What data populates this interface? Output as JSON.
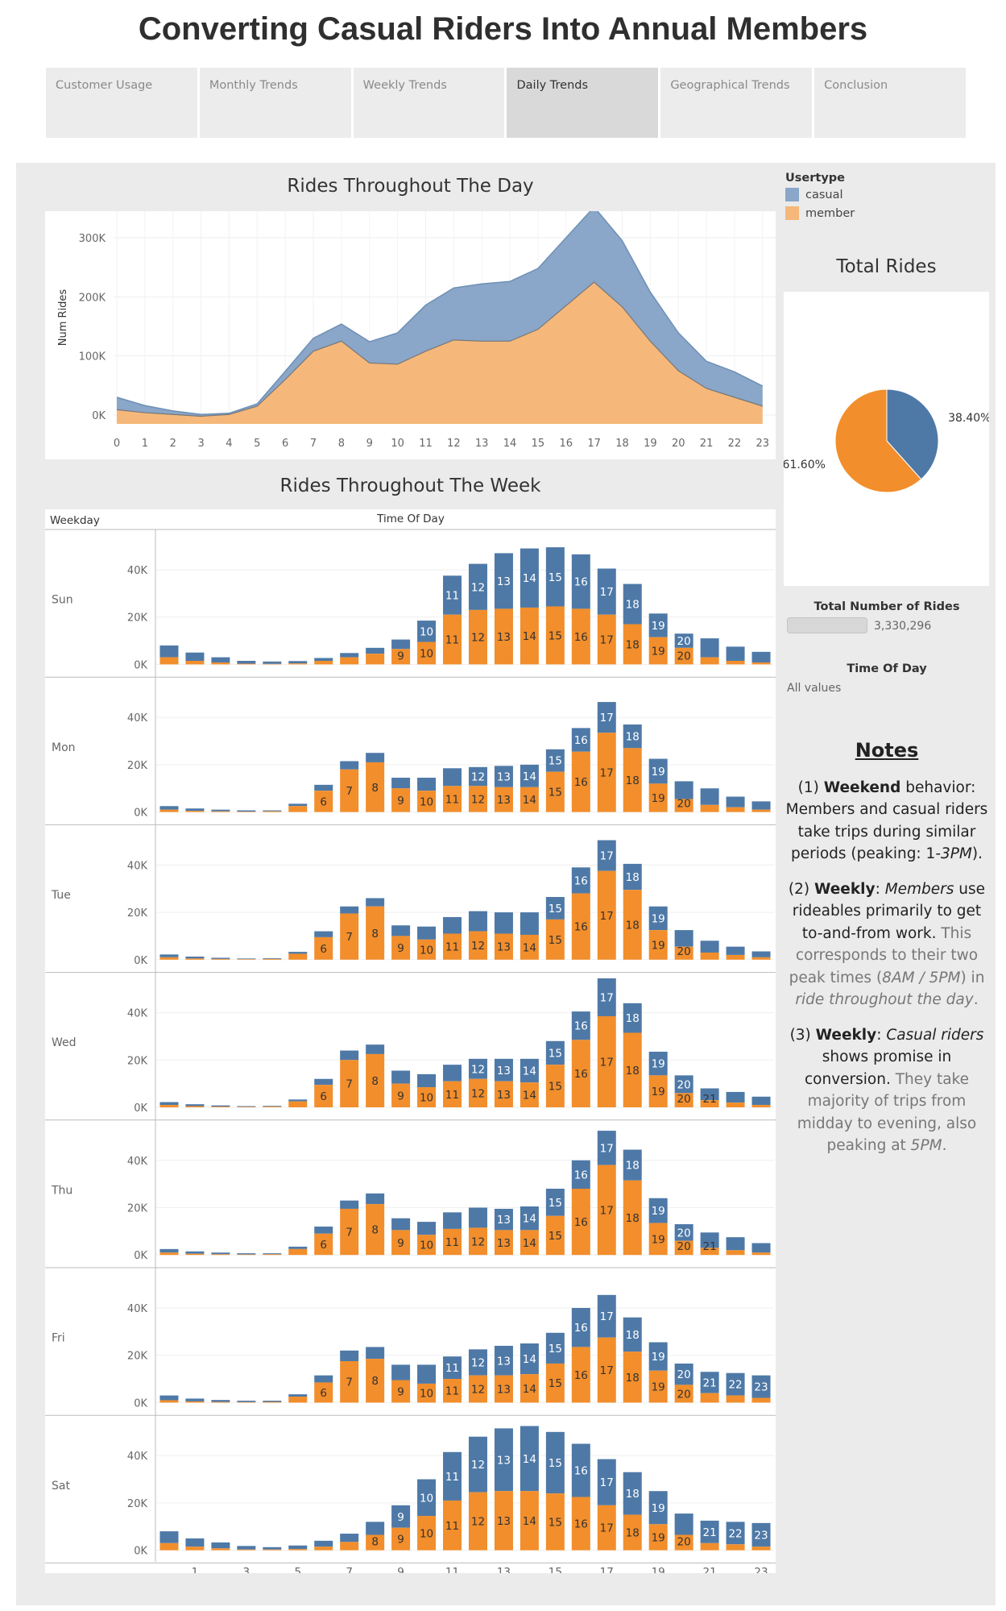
{
  "title": "Converting Casual Riders Into Annual Members",
  "tabs": [
    {
      "label": "Customer Usage",
      "active": false
    },
    {
      "label": "Monthly Trends",
      "active": false
    },
    {
      "label": "Weekly Trends",
      "active": false
    },
    {
      "label": "Daily Trends",
      "active": true
    },
    {
      "label": "Geographical Trends",
      "active": false
    },
    {
      "label": "Conclusion",
      "active": false
    }
  ],
  "colors": {
    "casual": "#4e79a7",
    "member": "#f28e2b",
    "casual_area": "#8aa6c8",
    "member_area": "#f5b87a"
  },
  "legend": {
    "title": "Usertype",
    "items": [
      "casual",
      "member"
    ]
  },
  "filters": {
    "total_label": "Total Number of Rides",
    "total_value": "3,330,296",
    "tod_label": "Time Of Day",
    "tod_value": "All values"
  },
  "notes": {
    "title": "Notes",
    "n1_a": "(1) ",
    "n1_b": "Weekend",
    "n1_c": " behavior: Members and casual riders take trips during similar periods (peaking: 1-",
    "n1_d": "3PM",
    "n1_e": ").",
    "n2_a": "(2) ",
    "n2_b": "Weekly",
    "n2_c": ": ",
    "n2_d": "Members",
    "n2_e": " use rideables primarily to get to-and-from work.",
    "n2_f": " This corresponds to their two peak times (",
    "n2_g": "8AM / 5PM",
    "n2_h": ") in ",
    "n2_i": "ride throughout the day",
    "n2_j": ".",
    "n3_a": "(3) ",
    "n3_b": "Weekly",
    "n3_c": ": ",
    "n3_d": "Casual riders",
    "n3_e": " shows promise in conversion.",
    "n3_f": " They take majority of trips from midday to evening, also peaking at ",
    "n3_g": "5PM",
    "n3_h": "."
  },
  "chart_data": [
    {
      "type": "area",
      "title": "Rides Throughout The Day",
      "xlabel": "",
      "ylabel": "Num Rides",
      "x": [
        0,
        1,
        2,
        3,
        4,
        5,
        6,
        7,
        8,
        9,
        10,
        11,
        12,
        13,
        14,
        15,
        16,
        17,
        18,
        19,
        20,
        21,
        22,
        23
      ],
      "x_tick_labels": [
        "0",
        "1",
        "2",
        "3",
        "4",
        "5",
        "6",
        "7",
        "8",
        "9",
        "10",
        "11",
        "12",
        "13",
        "14",
        "15",
        "16",
        "17",
        "18",
        "19",
        "20",
        "21",
        "22",
        "23"
      ],
      "y_ticks": [
        0,
        100000,
        200000,
        300000
      ],
      "y_tick_labels": [
        "0K",
        "100K",
        "200K",
        "300K"
      ],
      "ylim": [
        -15000,
        345000
      ],
      "stacked": true,
      "series": [
        {
          "name": "member",
          "values": [
            9000,
            4000,
            1000,
            -2000,
            1000,
            15000,
            60000,
            108000,
            125000,
            88000,
            86000,
            108000,
            127000,
            125000,
            125000,
            145000,
            185000,
            225000,
            183000,
            125000,
            75000,
            45000,
            30000,
            15000
          ]
        },
        {
          "name": "casual",
          "values": [
            21000,
            12000,
            6000,
            3000,
            2000,
            4000,
            14000,
            22000,
            29000,
            36000,
            53000,
            78000,
            88000,
            97000,
            101000,
            103000,
            115000,
            127000,
            112000,
            83000,
            64000,
            46000,
            43000,
            34000
          ]
        }
      ]
    },
    {
      "type": "bar",
      "title": "Rides Throughout The Week",
      "xlabel": "Time Of Day",
      "ylabel": "Weekday",
      "stacked": true,
      "hours": [
        0,
        1,
        2,
        3,
        4,
        5,
        6,
        7,
        8,
        9,
        10,
        11,
        12,
        13,
        14,
        15,
        16,
        17,
        18,
        19,
        20,
        21,
        22,
        23
      ],
      "x_tick_labels": [
        "1",
        "3",
        "5",
        "7",
        "9",
        "11",
        "13",
        "15",
        "17",
        "19",
        "21",
        "23"
      ],
      "y_ticks": [
        0,
        20000,
        40000
      ],
      "y_tick_labels": [
        "0K",
        "20K",
        "40K"
      ],
      "ylim": [
        -3000,
        56000
      ],
      "panels": [
        {
          "day": "Sun",
          "member": [
            3000,
            1500,
            800,
            300,
            200,
            400,
            1500,
            3000,
            4500,
            6500,
            9500,
            21000,
            23000,
            23500,
            24000,
            24500,
            23500,
            21000,
            17000,
            11500,
            7000,
            3000,
            1500,
            800
          ],
          "casual": [
            5000,
            3500,
            2200,
            1200,
            1000,
            1000,
            1200,
            1800,
            2500,
            4000,
            9000,
            16500,
            19500,
            23500,
            25000,
            25000,
            23000,
            19500,
            17000,
            10000,
            6000,
            8000,
            6000,
            4500
          ],
          "member_labels": [
            9,
            10,
            11,
            12,
            13,
            14,
            15,
            16,
            17,
            18,
            19,
            20
          ],
          "casual_labels": [
            10,
            11,
            12,
            13,
            14,
            15,
            16,
            17,
            18,
            19,
            20
          ]
        },
        {
          "day": "Mon",
          "member": [
            1000,
            500,
            300,
            200,
            300,
            2500,
            9000,
            18000,
            21000,
            10000,
            9000,
            11000,
            11000,
            10500,
            10500,
            17000,
            25500,
            33500,
            27000,
            12000,
            5500,
            3000,
            2000,
            1000
          ],
          "casual": [
            1500,
            1000,
            700,
            500,
            400,
            1000,
            2500,
            3500,
            4000,
            4500,
            5500,
            7500,
            8000,
            9000,
            9500,
            9500,
            10000,
            13000,
            10000,
            10500,
            7500,
            7000,
            4500,
            3500
          ],
          "member_labels": [
            6,
            7,
            8,
            9,
            10,
            11,
            12,
            13,
            14,
            15,
            16,
            17,
            18,
            19,
            20
          ],
          "casual_labels": [
            12,
            13,
            14,
            15,
            16,
            17,
            18,
            19
          ]
        },
        {
          "day": "Tue",
          "member": [
            1000,
            500,
            300,
            200,
            300,
            2500,
            9500,
            19500,
            22500,
            10000,
            8500,
            11000,
            12000,
            11000,
            10500,
            17000,
            28000,
            37500,
            29500,
            12500,
            5500,
            3000,
            2000,
            1000
          ],
          "casual": [
            1200,
            800,
            500,
            300,
            300,
            800,
            2500,
            3000,
            3500,
            4500,
            5500,
            7000,
            8500,
            9000,
            9500,
            9500,
            11000,
            13000,
            11000,
            10000,
            7000,
            5000,
            3500,
            2500
          ],
          "member_labels": [
            6,
            7,
            8,
            9,
            10,
            11,
            12,
            13,
            14,
            15,
            16,
            17,
            18,
            19,
            20
          ],
          "casual_labels": [
            15,
            16,
            17,
            18,
            19
          ]
        },
        {
          "day": "Wed",
          "member": [
            1000,
            500,
            300,
            200,
            300,
            2500,
            9500,
            20000,
            22500,
            10000,
            8500,
            11000,
            12000,
            11000,
            10500,
            18000,
            28500,
            38500,
            31500,
            13500,
            6000,
            3000,
            2000,
            1000
          ],
          "casual": [
            1200,
            800,
            500,
            300,
            300,
            800,
            2500,
            4000,
            4000,
            5500,
            5500,
            7000,
            8500,
            9500,
            10000,
            10000,
            12000,
            16000,
            12500,
            10000,
            7500,
            5000,
            4500,
            3500
          ],
          "member_labels": [
            6,
            7,
            8,
            9,
            10,
            11,
            12,
            13,
            14,
            15,
            16,
            17,
            18,
            19,
            20,
            21
          ],
          "casual_labels": [
            12,
            13,
            14,
            15,
            16,
            17,
            18,
            19,
            20
          ]
        },
        {
          "day": "Thu",
          "member": [
            1000,
            500,
            300,
            200,
            300,
            2500,
            9000,
            19500,
            21500,
            10500,
            8500,
            11000,
            11500,
            10500,
            10500,
            16500,
            28000,
            38000,
            31500,
            13500,
            6000,
            3000,
            2000,
            1000
          ],
          "casual": [
            1500,
            1000,
            700,
            500,
            400,
            1000,
            3000,
            3500,
            4500,
            5000,
            5500,
            7000,
            8500,
            9000,
            10000,
            11500,
            12000,
            14500,
            13000,
            10500,
            7000,
            6500,
            5500,
            4000
          ],
          "member_labels": [
            6,
            7,
            8,
            9,
            10,
            11,
            12,
            13,
            14,
            15,
            16,
            17,
            18,
            19,
            20,
            21
          ],
          "casual_labels": [
            13,
            14,
            15,
            16,
            17,
            18,
            19,
            20
          ]
        },
        {
          "day": "Fri",
          "member": [
            1000,
            500,
            300,
            200,
            300,
            2500,
            8500,
            17500,
            18500,
            9500,
            8000,
            10000,
            11500,
            11500,
            12000,
            16500,
            23500,
            27500,
            21500,
            13500,
            7500,
            4000,
            3000,
            2000
          ],
          "casual": [
            2000,
            1200,
            800,
            600,
            500,
            1000,
            3000,
            4500,
            5000,
            6500,
            8000,
            9500,
            11000,
            12500,
            13000,
            13000,
            16500,
            18000,
            14500,
            12000,
            9000,
            9000,
            9500,
            9500
          ],
          "member_labels": [
            6,
            7,
            8,
            9,
            10,
            11,
            12,
            13,
            14,
            15,
            16,
            17,
            18,
            19,
            20
          ],
          "casual_labels": [
            11,
            12,
            13,
            14,
            15,
            16,
            17,
            18,
            19,
            20,
            21,
            22,
            23
          ]
        },
        {
          "day": "Sat",
          "member": [
            3000,
            1500,
            800,
            300,
            300,
            500,
            1500,
            3500,
            6500,
            9500,
            14500,
            21000,
            24500,
            25000,
            25000,
            24000,
            22500,
            19000,
            15000,
            11000,
            6500,
            3000,
            2500,
            1500
          ],
          "casual": [
            5000,
            3500,
            2500,
            1500,
            1000,
            1500,
            2500,
            3500,
            5500,
            9500,
            15500,
            20500,
            23500,
            26500,
            27500,
            26000,
            22500,
            19500,
            18000,
            14000,
            9000,
            9500,
            9500,
            10000
          ],
          "member_labels": [
            8,
            9,
            10,
            11,
            12,
            13,
            14,
            15,
            16,
            17,
            18,
            19,
            20
          ],
          "casual_labels": [
            9,
            10,
            11,
            12,
            13,
            14,
            15,
            16,
            17,
            18,
            19,
            21,
            22,
            23
          ]
        }
      ]
    },
    {
      "type": "pie",
      "title": "Total Rides",
      "slices": [
        {
          "name": "casual",
          "percent": 38.4,
          "label": "38.40%"
        },
        {
          "name": "member",
          "percent": 61.6,
          "label": "61.60%"
        }
      ]
    }
  ]
}
